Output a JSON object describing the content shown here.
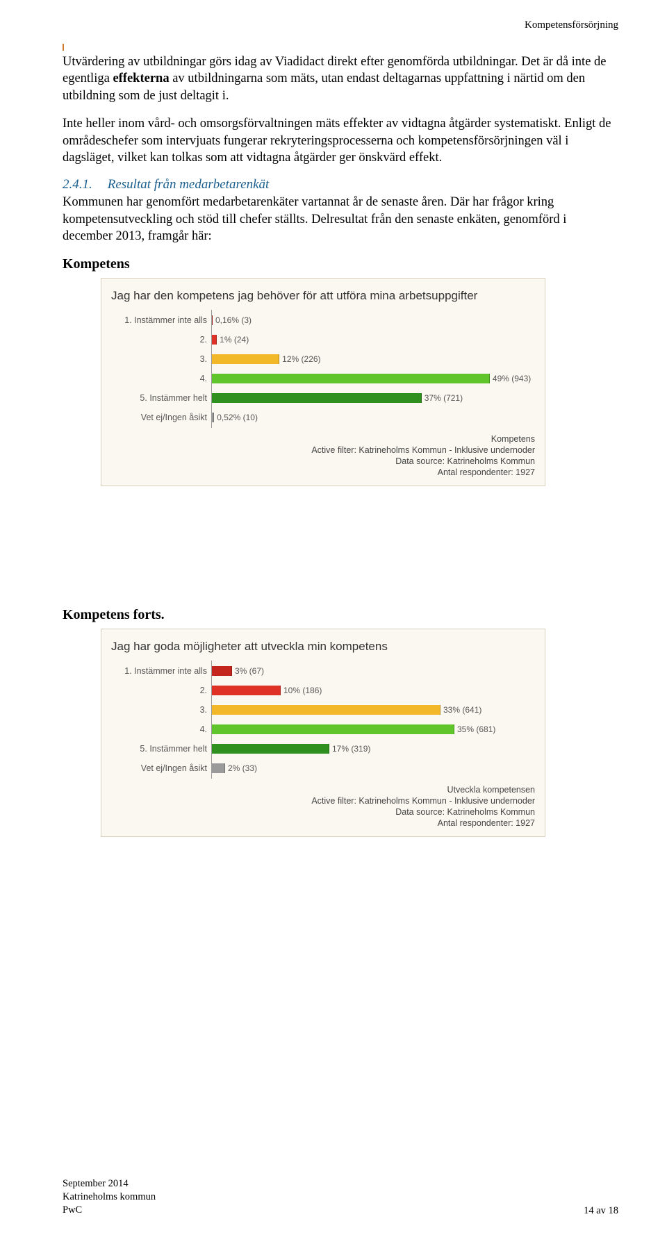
{
  "header": {
    "right_text": "Kompetensförsörjning"
  },
  "paragraphs": {
    "p1a": "Utvärdering av utbildningar görs idag av Viadidact direkt efter genomförda utbildningar. Det är då inte de egentliga ",
    "p1bold": "effekterna",
    "p1b": " av utbildningarna som mäts, utan endast deltagarnas uppfattning i närtid om den utbildning som de just deltagit i.",
    "p2": "Inte heller inom vård- och omsorgsförvaltningen mäts effekter av vidtagna åtgärder systematiskt. Enligt de områdeschefer som intervjuats fungerar rekryteringsprocesserna och kompetensförsörjningen väl i dagsläget, vilket kan tolkas som att vidtagna åtgärder ger önskvärd effekt.",
    "sec_num": "2.4.1.",
    "sec_title": "Resultat från medarbetarenkät",
    "p3": "Kommunen har genomfört medarbetarenkäter vartannat år de senaste åren. Där har frågor kring kompetensutveckling och stöd till chefer ställts. Delresultat från den senaste enkäten, genomförd i december 2013, framgår här:",
    "sub1": "Kompetens",
    "sub2": "Kompetens forts."
  },
  "chart1": {
    "title": "Jag har den kompetens jag behöver för att utföra mina arbetsuppgifter",
    "max_pct": 55,
    "rows": [
      {
        "label": "1. Instämmer inte alls",
        "value_text": "0,16% (3)",
        "pct": 0.16,
        "color": "#c4261d"
      },
      {
        "label": "2.",
        "value_text": "1% (24)",
        "pct": 1,
        "color": "#e03127"
      },
      {
        "label": "3.",
        "value_text": "12% (226)",
        "pct": 12,
        "color": "#f2b82a"
      },
      {
        "label": "4.",
        "value_text": "49% (943)",
        "pct": 49,
        "color": "#5fc52a"
      },
      {
        "label": "5. Instämmer helt",
        "value_text": "37% (721)",
        "pct": 37,
        "color": "#2f8f1f"
      },
      {
        "label": "Vet ej/Ingen åsikt",
        "value_text": "0,52% (10)",
        "pct": 0.52,
        "color": "#9a9a9a"
      }
    ],
    "caption_lines": [
      "Kompetens",
      "Active filter: Katrineholms Kommun - Inklusive undernoder",
      "Data source: Katrineholms Kommun",
      "Antal respondenter: 1927"
    ]
  },
  "chart2": {
    "title": "Jag har goda möjligheter att utveckla min kompetens",
    "max_pct": 45,
    "rows": [
      {
        "label": "1. Instämmer inte alls",
        "value_text": "3% (67)",
        "pct": 3,
        "color": "#c4261d"
      },
      {
        "label": "2.",
        "value_text": "10% (186)",
        "pct": 10,
        "color": "#e03127"
      },
      {
        "label": "3.",
        "value_text": "33% (641)",
        "pct": 33,
        "color": "#f2b82a"
      },
      {
        "label": "4.",
        "value_text": "35% (681)",
        "pct": 35,
        "color": "#5fc52a"
      },
      {
        "label": "5. Instämmer helt",
        "value_text": "17% (319)",
        "pct": 17,
        "color": "#2f8f1f"
      },
      {
        "label": "Vet ej/Ingen åsikt",
        "value_text": "2% (33)",
        "pct": 2,
        "color": "#9a9a9a"
      }
    ],
    "caption_lines": [
      "Utveckla kompetensen",
      "Active filter: Katrineholms Kommun - Inklusive undernoder",
      "Data source: Katrineholms Kommun",
      "Antal respondenter: 1927"
    ]
  },
  "footer": {
    "line1": "September 2014",
    "line2": "Katrineholms kommun",
    "line3": "PwC",
    "page": "14 av 18"
  }
}
